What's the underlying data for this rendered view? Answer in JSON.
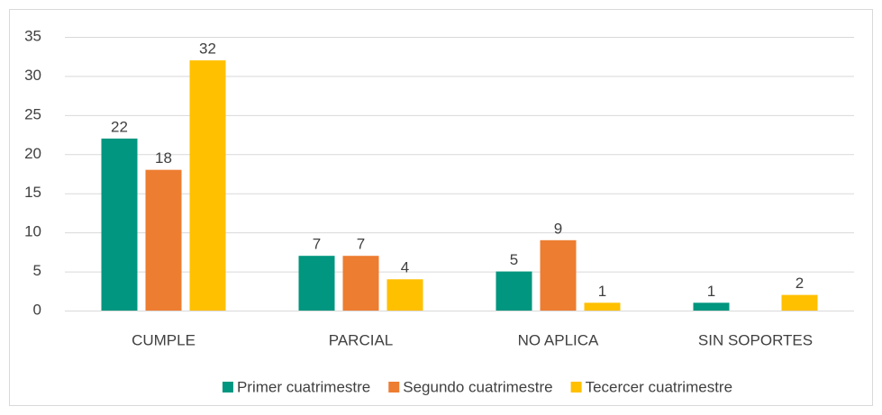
{
  "chart_data": {
    "type": "bar",
    "categories": [
      "CUMPLE",
      "PARCIAL",
      "NO APLICA",
      "SIN SOPORTES"
    ],
    "series": [
      {
        "name": "Primer cuatrimestre",
        "color": "#00967f",
        "values": [
          22,
          7,
          5,
          1
        ]
      },
      {
        "name": "Segundo cuatrimestre",
        "color": "#ed7d31",
        "values": [
          18,
          7,
          9,
          null
        ]
      },
      {
        "name": "Tecercer cuatrimestre",
        "color": "#ffc000",
        "values": [
          32,
          4,
          1,
          2
        ]
      }
    ],
    "ylim": [
      0,
      35
    ],
    "yticks": [
      0,
      5,
      10,
      15,
      20,
      25,
      30,
      35
    ],
    "grid": true,
    "legend": "bottom"
  }
}
